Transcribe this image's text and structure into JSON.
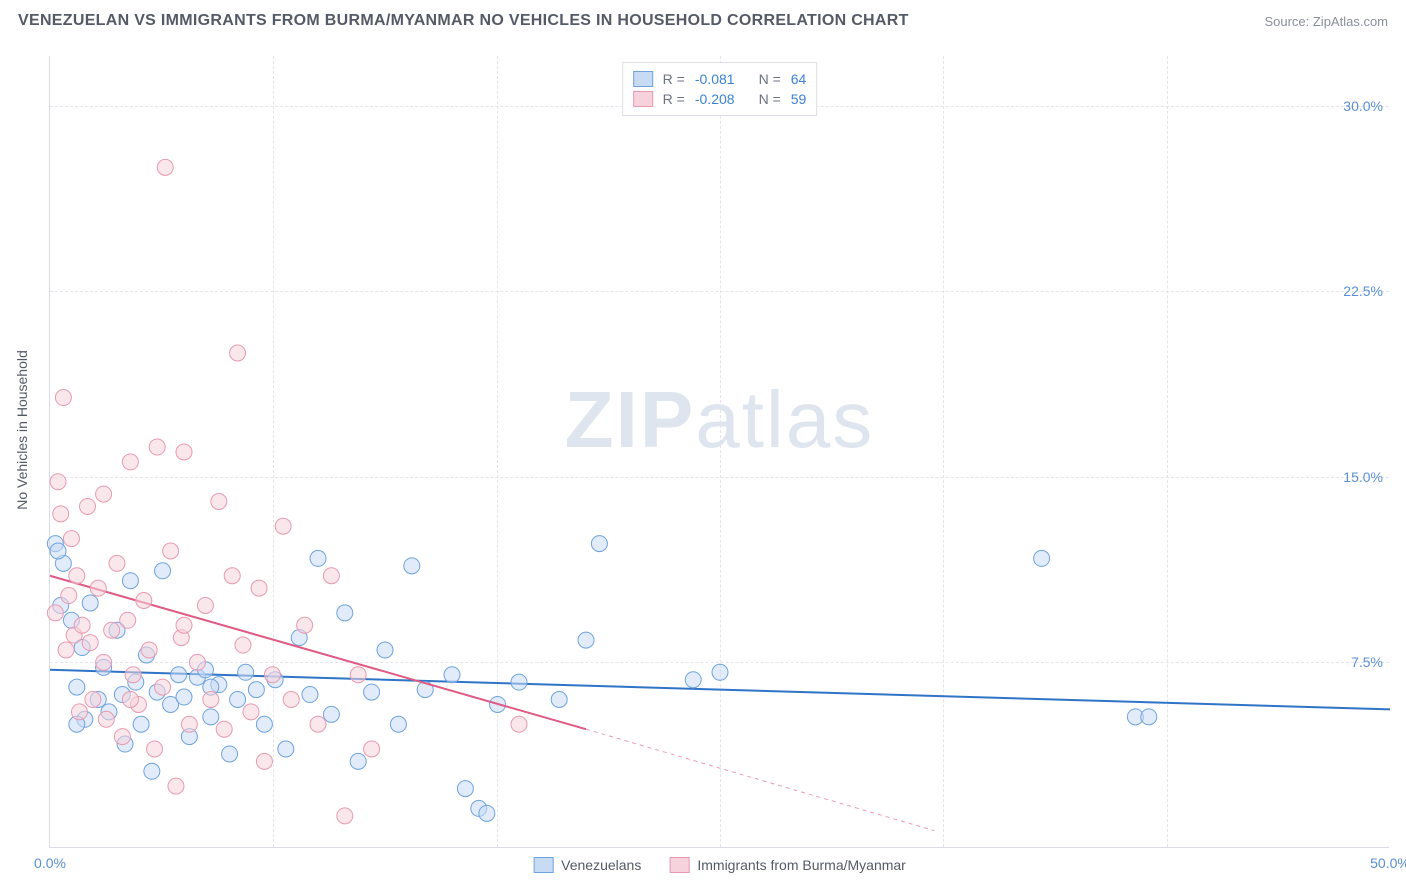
{
  "header": {
    "title": "VENEZUELAN VS IMMIGRANTS FROM BURMA/MYANMAR NO VEHICLES IN HOUSEHOLD CORRELATION CHART",
    "source": "Source: ZipAtlas.com"
  },
  "ylabel": "No Vehicles in Household",
  "watermark": {
    "zip": "ZIP",
    "atlas": "atlas"
  },
  "legend_top": {
    "rows": [
      {
        "swatch_fill": "#c8dbf4",
        "swatch_stroke": "#6fa3e0",
        "r_label": "R =",
        "r_value": "-0.081",
        "n_label": "N =",
        "n_value": "64"
      },
      {
        "swatch_fill": "#f6d3dc",
        "swatch_stroke": "#e89ab0",
        "r_label": "R =",
        "r_value": "-0.208",
        "n_label": "N =",
        "n_value": "59"
      }
    ]
  },
  "legend_bottom": {
    "items": [
      {
        "swatch_fill": "#c8dbf4",
        "swatch_stroke": "#6fa3e0",
        "label": "Venezuelans"
      },
      {
        "swatch_fill": "#f6d3dc",
        "swatch_stroke": "#e89ab0",
        "label": "Immigrants from Burma/Myanmar"
      }
    ]
  },
  "chart": {
    "type": "scatter",
    "background_color": "#ffffff",
    "grid_color": "#e3e5ea",
    "axis_color": "#d9dce2",
    "tick_color": "#5a8fd6",
    "xlim": [
      0,
      50
    ],
    "ylim": [
      0,
      32
    ],
    "xticks": [
      0,
      50
    ],
    "xtick_labels": [
      "0.0%",
      "50.0%"
    ],
    "yticks": [
      7.5,
      15.0,
      22.5,
      30.0
    ],
    "ytick_labels": [
      "7.5%",
      "15.0%",
      "22.5%",
      "30.0%"
    ],
    "xgrid": [
      8.33,
      16.67,
      25,
      33.33,
      41.67
    ],
    "title_fontsize": 16,
    "label_fontsize": 14,
    "tick_fontsize": 14,
    "marker_radius": 8,
    "line_width": 2,
    "series": [
      {
        "name": "Venezuelans",
        "fill": "#c8dbf4",
        "stroke": "#6fa3e0",
        "line_color": "#2f74c6",
        "trend": {
          "x0": 0,
          "y0": 7.2,
          "x1": 50,
          "y1": 5.6
        },
        "trend_dash": null,
        "points": [
          [
            0.2,
            12.3
          ],
          [
            0.4,
            9.8
          ],
          [
            0.5,
            11.5
          ],
          [
            0.8,
            9.2
          ],
          [
            1.0,
            6.5
          ],
          [
            1.2,
            8.1
          ],
          [
            1.3,
            5.2
          ],
          [
            1.5,
            9.9
          ],
          [
            1.8,
            6.0
          ],
          [
            2.0,
            7.3
          ],
          [
            2.2,
            5.5
          ],
          [
            2.5,
            8.8
          ],
          [
            2.8,
            4.2
          ],
          [
            3.0,
            10.8
          ],
          [
            3.2,
            6.7
          ],
          [
            3.4,
            5.0
          ],
          [
            3.6,
            7.8
          ],
          [
            3.8,
            3.1
          ],
          [
            4.0,
            6.3
          ],
          [
            4.2,
            11.2
          ],
          [
            4.5,
            5.8
          ],
          [
            4.8,
            7.0
          ],
          [
            5.0,
            6.1
          ],
          [
            5.2,
            4.5
          ],
          [
            5.5,
            6.9
          ],
          [
            5.8,
            7.2
          ],
          [
            6.0,
            5.3
          ],
          [
            6.3,
            6.6
          ],
          [
            6.7,
            3.8
          ],
          [
            7.0,
            6.0
          ],
          [
            7.3,
            7.1
          ],
          [
            7.7,
            6.4
          ],
          [
            8.0,
            5.0
          ],
          [
            8.4,
            6.8
          ],
          [
            8.8,
            4.0
          ],
          [
            9.3,
            8.5
          ],
          [
            9.7,
            6.2
          ],
          [
            10.0,
            11.7
          ],
          [
            10.5,
            5.4
          ],
          [
            11.0,
            9.5
          ],
          [
            11.5,
            3.5
          ],
          [
            12.0,
            6.3
          ],
          [
            12.5,
            8.0
          ],
          [
            13.0,
            5.0
          ],
          [
            13.5,
            11.4
          ],
          [
            14.0,
            6.4
          ],
          [
            15.0,
            7.0
          ],
          [
            15.5,
            2.4
          ],
          [
            16.0,
            1.6
          ],
          [
            16.3,
            1.4
          ],
          [
            16.7,
            5.8
          ],
          [
            17.5,
            6.7
          ],
          [
            19.0,
            6.0
          ],
          [
            20.0,
            8.4
          ],
          [
            20.5,
            12.3
          ],
          [
            24.0,
            6.8
          ],
          [
            25.0,
            7.1
          ],
          [
            37.0,
            11.7
          ],
          [
            40.5,
            5.3
          ],
          [
            41.0,
            5.3
          ],
          [
            0.3,
            12.0
          ],
          [
            1.0,
            5.0
          ],
          [
            2.7,
            6.2
          ],
          [
            6.0,
            6.5
          ]
        ]
      },
      {
        "name": "Immigrants from Burma/Myanmar",
        "fill": "#f6d3dc",
        "stroke": "#e89ab0",
        "line_color": "#e05a84",
        "trend": {
          "x0": 0,
          "y0": 11.0,
          "x1": 20,
          "y1": 4.8
        },
        "trend_dash": {
          "x0": 20,
          "y0": 4.8,
          "x1": 33,
          "y1": 0.7
        },
        "points": [
          [
            0.2,
            9.5
          ],
          [
            0.3,
            14.8
          ],
          [
            0.4,
            13.5
          ],
          [
            0.5,
            18.2
          ],
          [
            0.6,
            8.0
          ],
          [
            0.7,
            10.2
          ],
          [
            0.8,
            12.5
          ],
          [
            0.9,
            8.6
          ],
          [
            1.0,
            11.0
          ],
          [
            1.1,
            5.5
          ],
          [
            1.2,
            9.0
          ],
          [
            1.4,
            13.8
          ],
          [
            1.5,
            8.3
          ],
          [
            1.6,
            6.0
          ],
          [
            1.8,
            10.5
          ],
          [
            2.0,
            14.3
          ],
          [
            2.1,
            5.2
          ],
          [
            2.3,
            8.8
          ],
          [
            2.5,
            11.5
          ],
          [
            2.7,
            4.5
          ],
          [
            2.9,
            9.2
          ],
          [
            3.0,
            15.6
          ],
          [
            3.1,
            7.0
          ],
          [
            3.3,
            5.8
          ],
          [
            3.5,
            10.0
          ],
          [
            3.7,
            8.0
          ],
          [
            3.9,
            4.0
          ],
          [
            4.0,
            16.2
          ],
          [
            4.2,
            6.5
          ],
          [
            4.5,
            12.0
          ],
          [
            4.7,
            2.5
          ],
          [
            4.9,
            8.5
          ],
          [
            5.0,
            16.0
          ],
          [
            5.2,
            5.0
          ],
          [
            5.5,
            7.5
          ],
          [
            5.8,
            9.8
          ],
          [
            6.0,
            6.0
          ],
          [
            6.3,
            14.0
          ],
          [
            6.5,
            4.8
          ],
          [
            6.8,
            11.0
          ],
          [
            7.0,
            20.0
          ],
          [
            7.2,
            8.2
          ],
          [
            7.5,
            5.5
          ],
          [
            7.8,
            10.5
          ],
          [
            8.0,
            3.5
          ],
          [
            8.3,
            7.0
          ],
          [
            8.7,
            13.0
          ],
          [
            9.0,
            6.0
          ],
          [
            9.5,
            9.0
          ],
          [
            10.0,
            5.0
          ],
          [
            10.5,
            11.0
          ],
          [
            11.0,
            1.3
          ],
          [
            11.5,
            7.0
          ],
          [
            12.0,
            4.0
          ],
          [
            4.3,
            27.5
          ],
          [
            17.5,
            5.0
          ],
          [
            2.0,
            7.5
          ],
          [
            3.0,
            6.0
          ],
          [
            5.0,
            9.0
          ]
        ]
      }
    ]
  }
}
